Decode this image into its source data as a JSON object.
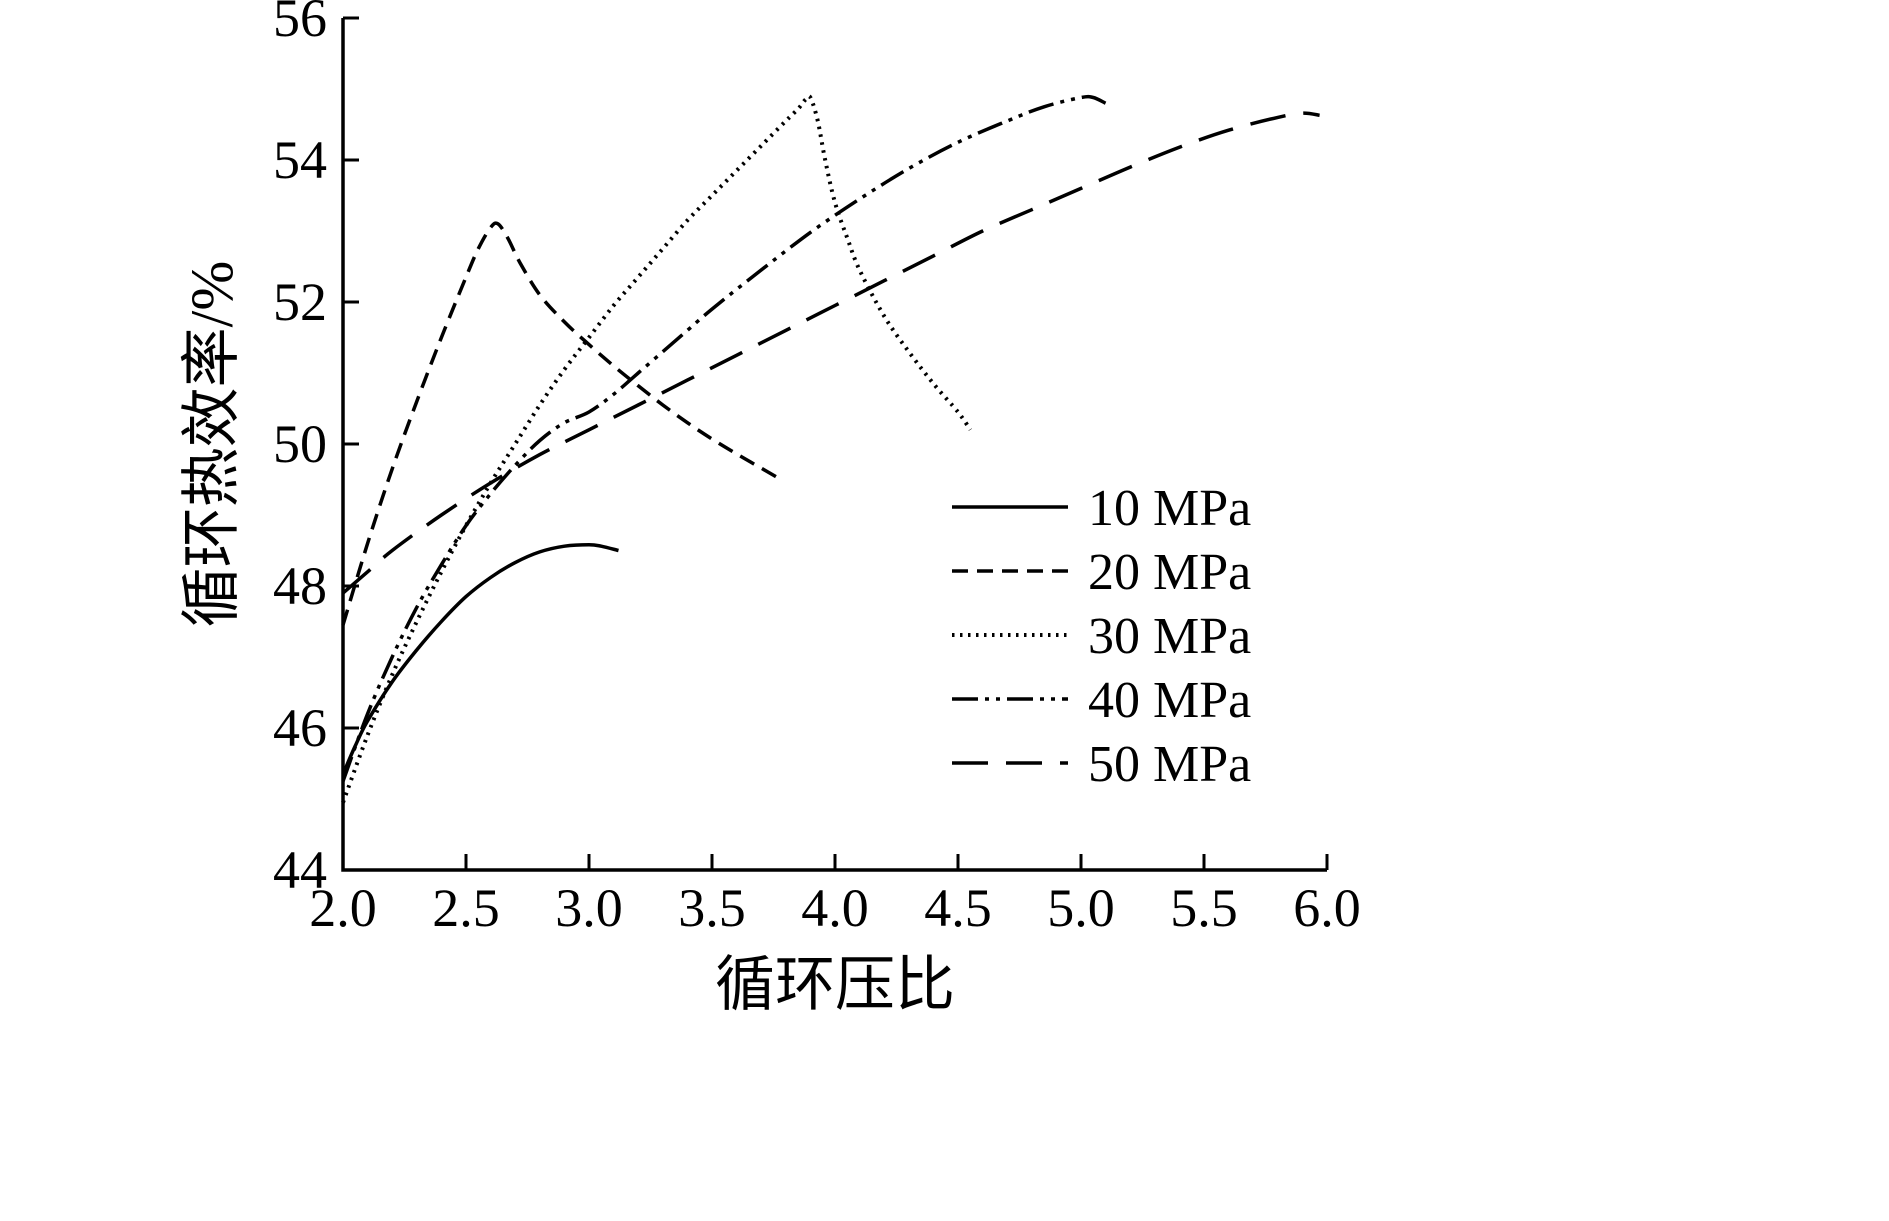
{
  "figure": {
    "background": "#ffffff",
    "line_color": "#000000"
  },
  "chart_data": {
    "type": "line",
    "title": "",
    "xlabel": "循环压比",
    "ylabel": "循环热效率/%",
    "xlim": [
      2.0,
      6.0
    ],
    "ylim": [
      44,
      56
    ],
    "xticks": [
      "2.0",
      "2.5",
      "3.0",
      "3.5",
      "4.0",
      "4.5",
      "5.0",
      "5.5",
      "6.0"
    ],
    "yticks": [
      "44",
      "46",
      "48",
      "50",
      "52",
      "54",
      "56"
    ],
    "grid": false,
    "legend_position": "center-right",
    "series": [
      {
        "name": "10 MPa",
        "linestyle": "solid",
        "points": [
          [
            2.0,
            45.35
          ],
          [
            2.05,
            45.75
          ],
          [
            2.1,
            46.1
          ],
          [
            2.2,
            46.65
          ],
          [
            2.3,
            47.1
          ],
          [
            2.4,
            47.5
          ],
          [
            2.5,
            47.85
          ],
          [
            2.6,
            48.12
          ],
          [
            2.7,
            48.33
          ],
          [
            2.8,
            48.48
          ],
          [
            2.9,
            48.56
          ],
          [
            3.0,
            48.58
          ],
          [
            3.05,
            48.56
          ],
          [
            3.12,
            48.5
          ]
        ]
      },
      {
        "name": "20 MPa",
        "linestyle": "dashed",
        "points": [
          [
            2.0,
            47.45
          ],
          [
            2.1,
            48.6
          ],
          [
            2.2,
            49.65
          ],
          [
            2.3,
            50.6
          ],
          [
            2.4,
            51.5
          ],
          [
            2.5,
            52.35
          ],
          [
            2.55,
            52.75
          ],
          [
            2.6,
            53.05
          ],
          [
            2.63,
            53.1
          ],
          [
            2.67,
            52.9
          ],
          [
            2.72,
            52.55
          ],
          [
            2.8,
            52.1
          ],
          [
            2.9,
            51.72
          ],
          [
            3.0,
            51.4
          ],
          [
            3.1,
            51.1
          ],
          [
            3.2,
            50.82
          ],
          [
            3.3,
            50.55
          ],
          [
            3.4,
            50.3
          ],
          [
            3.5,
            50.07
          ],
          [
            3.6,
            49.86
          ],
          [
            3.7,
            49.66
          ],
          [
            3.78,
            49.5
          ]
        ]
      },
      {
        "name": "30 MPa",
        "linestyle": "dotted",
        "points": [
          [
            2.0,
            44.95
          ],
          [
            2.1,
            45.9
          ],
          [
            2.2,
            46.75
          ],
          [
            2.3,
            47.5
          ],
          [
            2.4,
            48.2
          ],
          [
            2.5,
            48.85
          ],
          [
            2.6,
            49.45
          ],
          [
            2.7,
            50.0
          ],
          [
            2.8,
            50.55
          ],
          [
            2.9,
            51.05
          ],
          [
            3.0,
            51.5
          ],
          [
            3.1,
            51.95
          ],
          [
            3.2,
            52.35
          ],
          [
            3.3,
            52.75
          ],
          [
            3.4,
            53.15
          ],
          [
            3.5,
            53.5
          ],
          [
            3.6,
            53.85
          ],
          [
            3.7,
            54.2
          ],
          [
            3.8,
            54.55
          ],
          [
            3.85,
            54.72
          ],
          [
            3.88,
            54.85
          ],
          [
            3.9,
            54.88
          ],
          [
            3.93,
            54.55
          ],
          [
            3.96,
            54.0
          ],
          [
            4.0,
            53.4
          ],
          [
            4.05,
            52.9
          ],
          [
            4.1,
            52.45
          ],
          [
            4.2,
            51.8
          ],
          [
            4.3,
            51.3
          ],
          [
            4.4,
            50.85
          ],
          [
            4.5,
            50.45
          ],
          [
            4.55,
            50.2
          ]
        ]
      },
      {
        "name": "40 MPa",
        "linestyle": "dashdotdot",
        "points": [
          [
            2.0,
            45.25
          ],
          [
            2.1,
            46.2
          ],
          [
            2.2,
            47.0
          ],
          [
            2.3,
            47.7
          ],
          [
            2.4,
            48.3
          ],
          [
            2.5,
            48.85
          ],
          [
            2.6,
            49.3
          ],
          [
            2.7,
            49.7
          ],
          [
            2.8,
            50.05
          ],
          [
            2.9,
            50.3
          ],
          [
            3.0,
            50.45
          ],
          [
            3.1,
            50.7
          ],
          [
            3.2,
            51.0
          ],
          [
            3.3,
            51.3
          ],
          [
            3.4,
            51.6
          ],
          [
            3.5,
            51.9
          ],
          [
            3.7,
            52.45
          ],
          [
            3.9,
            52.98
          ],
          [
            4.1,
            53.45
          ],
          [
            4.3,
            53.88
          ],
          [
            4.5,
            54.25
          ],
          [
            4.7,
            54.55
          ],
          [
            4.85,
            54.75
          ],
          [
            5.0,
            54.88
          ],
          [
            5.05,
            54.88
          ],
          [
            5.1,
            54.8
          ]
        ]
      },
      {
        "name": "50 MPa",
        "linestyle": "longdash",
        "points": [
          [
            2.0,
            47.9
          ],
          [
            2.1,
            48.2
          ],
          [
            2.2,
            48.5
          ],
          [
            2.4,
            49.0
          ],
          [
            2.6,
            49.45
          ],
          [
            2.8,
            49.85
          ],
          [
            3.0,
            50.2
          ],
          [
            3.2,
            50.55
          ],
          [
            3.4,
            50.9
          ],
          [
            3.6,
            51.25
          ],
          [
            3.8,
            51.6
          ],
          [
            4.0,
            51.95
          ],
          [
            4.2,
            52.3
          ],
          [
            4.4,
            52.65
          ],
          [
            4.6,
            53.0
          ],
          [
            4.8,
            53.3
          ],
          [
            5.0,
            53.6
          ],
          [
            5.2,
            53.9
          ],
          [
            5.4,
            54.18
          ],
          [
            5.6,
            54.42
          ],
          [
            5.8,
            54.6
          ],
          [
            5.9,
            54.66
          ],
          [
            5.97,
            54.63
          ]
        ]
      }
    ]
  }
}
